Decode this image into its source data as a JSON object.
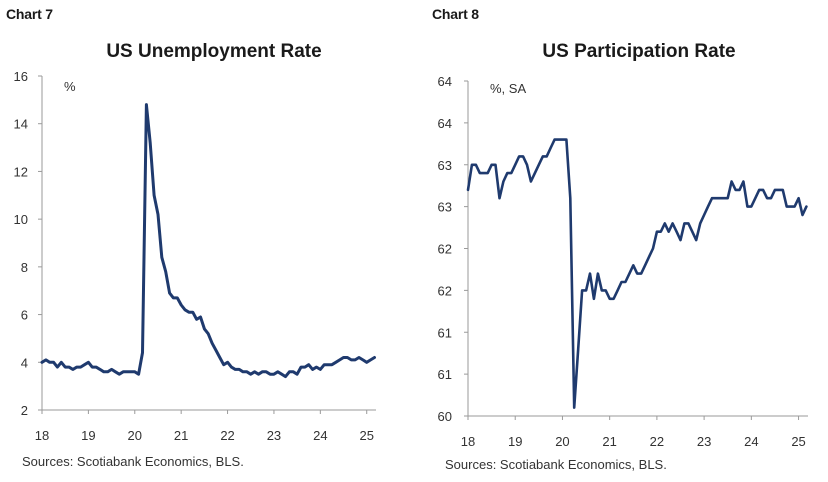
{
  "charts": [
    {
      "label": "Chart 7",
      "title": "US Unemployment Rate",
      "unit": "%",
      "source": "Sources: Scotiabank Economics, BLS."
    },
    {
      "label": "Chart 8",
      "title": "US Participation Rate",
      "unit": "%, SA",
      "source": "Sources: Scotiabank Economics, BLS."
    }
  ],
  "colors": {
    "line": "#1f3a6e",
    "axis": "#9a9a9a"
  },
  "chart_data": [
    {
      "type": "line",
      "title": "US Unemployment Rate",
      "ylabel": "%",
      "xlim": [
        2018.0,
        2025.2
      ],
      "ylim": [
        2,
        16
      ],
      "yticks": [
        2,
        4,
        6,
        8,
        10,
        12,
        14,
        16
      ],
      "xticks": [
        {
          "value": 2018,
          "label": "18"
        },
        {
          "value": 2019,
          "label": "19"
        },
        {
          "value": 2020,
          "label": "20"
        },
        {
          "value": 2021,
          "label": "21"
        },
        {
          "value": 2022,
          "label": "22"
        },
        {
          "value": 2023,
          "label": "23"
        },
        {
          "value": 2024,
          "label": "24"
        },
        {
          "value": 2025,
          "label": "25"
        }
      ],
      "grid": false,
      "series": [
        {
          "x": [
            2018.0,
            2018.083,
            2018.167,
            2018.25,
            2018.333,
            2018.417,
            2018.5,
            2018.583,
            2018.667,
            2018.75,
            2018.833,
            2018.917,
            2019.0,
            2019.083,
            2019.167,
            2019.25,
            2019.333,
            2019.417,
            2019.5,
            2019.583,
            2019.667,
            2019.75,
            2019.833,
            2019.917,
            2020.0,
            2020.083,
            2020.167,
            2020.25,
            2020.333,
            2020.417,
            2020.5,
            2020.583,
            2020.667,
            2020.75,
            2020.833,
            2020.917,
            2021.0,
            2021.083,
            2021.167,
            2021.25,
            2021.333,
            2021.417,
            2021.5,
            2021.583,
            2021.667,
            2021.75,
            2021.833,
            2021.917,
            2022.0,
            2022.083,
            2022.167,
            2022.25,
            2022.333,
            2022.417,
            2022.5,
            2022.583,
            2022.667,
            2022.75,
            2022.833,
            2022.917,
            2023.0,
            2023.083,
            2023.167,
            2023.25,
            2023.333,
            2023.417,
            2023.5,
            2023.583,
            2023.667,
            2023.75,
            2023.833,
            2023.917,
            2024.0,
            2024.083,
            2024.167,
            2024.25,
            2024.333,
            2024.417,
            2024.5,
            2024.583,
            2024.667,
            2024.75,
            2024.833,
            2024.917,
            2025.0,
            2025.083,
            2025.167
          ],
          "values": [
            4.0,
            4.1,
            4.0,
            4.0,
            3.8,
            4.0,
            3.8,
            3.8,
            3.7,
            3.8,
            3.8,
            3.9,
            4.0,
            3.8,
            3.8,
            3.7,
            3.6,
            3.6,
            3.7,
            3.6,
            3.5,
            3.6,
            3.6,
            3.6,
            3.6,
            3.5,
            4.4,
            14.8,
            13.2,
            11.0,
            10.2,
            8.4,
            7.8,
            6.9,
            6.7,
            6.7,
            6.4,
            6.2,
            6.1,
            6.1,
            5.8,
            5.9,
            5.4,
            5.2,
            4.8,
            4.5,
            4.2,
            3.9,
            4.0,
            3.8,
            3.7,
            3.7,
            3.6,
            3.6,
            3.5,
            3.6,
            3.5,
            3.6,
            3.6,
            3.5,
            3.5,
            3.6,
            3.5,
            3.4,
            3.6,
            3.6,
            3.5,
            3.8,
            3.8,
            3.9,
            3.7,
            3.8,
            3.7,
            3.9,
            3.9,
            3.9,
            4.0,
            4.1,
            4.2,
            4.2,
            4.1,
            4.1,
            4.2,
            4.1,
            4.0,
            4.1,
            4.2
          ]
        }
      ]
    },
    {
      "type": "line",
      "title": "US Participation Rate",
      "ylabel": "%, SA",
      "xlim": [
        2018.0,
        2025.2
      ],
      "ylim": [
        60.0,
        64.0
      ],
      "yticks": [
        60.0,
        60.5,
        61.0,
        61.5,
        62.0,
        62.5,
        63.0,
        63.5,
        64.0
      ],
      "ytick_labels": [
        "60",
        "61",
        "61",
        "62",
        "62",
        "63",
        "63",
        "64",
        "64"
      ],
      "xticks": [
        {
          "value": 2018,
          "label": "18"
        },
        {
          "value": 2019,
          "label": "19"
        },
        {
          "value": 2020,
          "label": "20"
        },
        {
          "value": 2021,
          "label": "21"
        },
        {
          "value": 2022,
          "label": "22"
        },
        {
          "value": 2023,
          "label": "23"
        },
        {
          "value": 2024,
          "label": "24"
        },
        {
          "value": 2025,
          "label": "25"
        }
      ],
      "grid": false,
      "series": [
        {
          "x": [
            2018.0,
            2018.083,
            2018.167,
            2018.25,
            2018.333,
            2018.417,
            2018.5,
            2018.583,
            2018.667,
            2018.75,
            2018.833,
            2018.917,
            2019.0,
            2019.083,
            2019.167,
            2019.25,
            2019.333,
            2019.417,
            2019.5,
            2019.583,
            2019.667,
            2019.75,
            2019.833,
            2019.917,
            2020.0,
            2020.083,
            2020.167,
            2020.25,
            2020.333,
            2020.417,
            2020.5,
            2020.583,
            2020.667,
            2020.75,
            2020.833,
            2020.917,
            2021.0,
            2021.083,
            2021.167,
            2021.25,
            2021.333,
            2021.417,
            2021.5,
            2021.583,
            2021.667,
            2021.75,
            2021.833,
            2021.917,
            2022.0,
            2022.083,
            2022.167,
            2022.25,
            2022.333,
            2022.417,
            2022.5,
            2022.583,
            2022.667,
            2022.75,
            2022.833,
            2022.917,
            2023.0,
            2023.083,
            2023.167,
            2023.25,
            2023.333,
            2023.417,
            2023.5,
            2023.583,
            2023.667,
            2023.75,
            2023.833,
            2023.917,
            2024.0,
            2024.083,
            2024.167,
            2024.25,
            2024.333,
            2024.417,
            2024.5,
            2024.583,
            2024.667,
            2024.75,
            2024.833,
            2024.917,
            2025.0,
            2025.083,
            2025.167
          ],
          "values": [
            62.7,
            63.0,
            63.0,
            62.9,
            62.9,
            62.9,
            63.0,
            63.0,
            62.6,
            62.8,
            62.9,
            62.9,
            63.0,
            63.1,
            63.1,
            63.0,
            62.8,
            62.9,
            63.0,
            63.1,
            63.1,
            63.2,
            63.3,
            63.3,
            63.3,
            63.3,
            62.6,
            60.1,
            60.8,
            61.5,
            61.5,
            61.7,
            61.4,
            61.7,
            61.5,
            61.5,
            61.4,
            61.4,
            61.5,
            61.6,
            61.6,
            61.7,
            61.8,
            61.7,
            61.7,
            61.8,
            61.9,
            62.0,
            62.2,
            62.2,
            62.3,
            62.2,
            62.3,
            62.2,
            62.1,
            62.3,
            62.3,
            62.2,
            62.1,
            62.3,
            62.4,
            62.5,
            62.6,
            62.6,
            62.6,
            62.6,
            62.6,
            62.8,
            62.7,
            62.7,
            62.8,
            62.5,
            62.5,
            62.6,
            62.7,
            62.7,
            62.6,
            62.6,
            62.7,
            62.7,
            62.7,
            62.5,
            62.5,
            62.5,
            62.6,
            62.4,
            62.5
          ]
        }
      ]
    }
  ]
}
